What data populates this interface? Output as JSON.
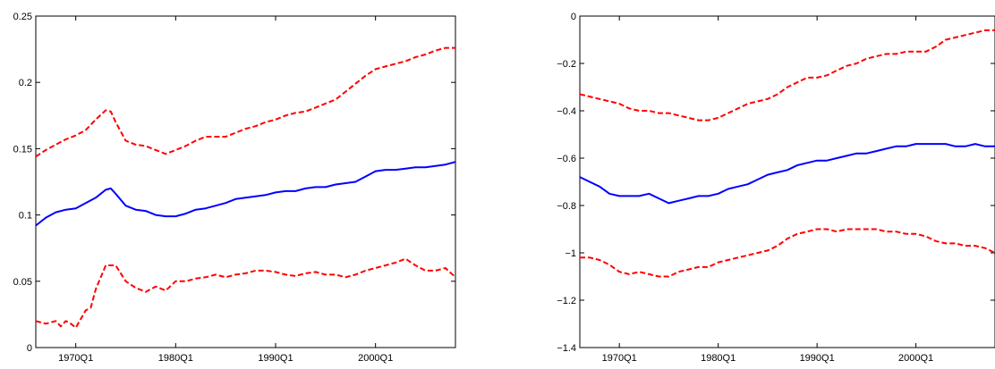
{
  "chart_data": [
    {
      "type": "line",
      "title": "",
      "xlabel": "",
      "ylabel": "",
      "xlim": [
        1966.0,
        2008.0
      ],
      "ylim": [
        0,
        0.25
      ],
      "x_ticks": [
        1970,
        1980,
        1990,
        2000
      ],
      "x_tick_labels": [
        "1970Q1",
        "1980Q1",
        "1990Q1",
        "2000Q1"
      ],
      "y_ticks": [
        0,
        0.05,
        0.1,
        0.15,
        0.2,
        0.25
      ],
      "y_tick_labels": [
        "0",
        "0.05",
        "0.1",
        "0.15",
        "0.2",
        "0.25"
      ],
      "grid": false,
      "series": [
        {
          "role": "estimate",
          "color": "#0000ff",
          "dash": "solid",
          "x": [
            1966.0,
            1967.0,
            1968.0,
            1969.0,
            1970.0,
            1971.0,
            1972.0,
            1973.0,
            1973.5,
            1974.0,
            1975.0,
            1976.0,
            1977.0,
            1978.0,
            1979.0,
            1980.0,
            1981.0,
            1982.0,
            1983.0,
            1984.0,
            1985.0,
            1986.0,
            1987.0,
            1988.0,
            1989.0,
            1990.0,
            1991.0,
            1992.0,
            1993.0,
            1994.0,
            1995.0,
            1996.0,
            1997.0,
            1998.0,
            1999.0,
            2000.0,
            2001.0,
            2002.0,
            2003.0,
            2004.0,
            2005.0,
            2006.0,
            2007.0,
            2008.0
          ],
          "values": [
            0.092,
            0.098,
            0.102,
            0.104,
            0.105,
            0.109,
            0.113,
            0.119,
            0.12,
            0.116,
            0.107,
            0.104,
            0.103,
            0.1,
            0.099,
            0.099,
            0.101,
            0.104,
            0.105,
            0.107,
            0.109,
            0.112,
            0.113,
            0.114,
            0.115,
            0.117,
            0.118,
            0.118,
            0.12,
            0.121,
            0.121,
            0.123,
            0.124,
            0.125,
            0.129,
            0.133,
            0.134,
            0.134,
            0.135,
            0.136,
            0.136,
            0.137,
            0.138,
            0.14
          ]
        },
        {
          "role": "upper-band",
          "color": "#ff0000",
          "dash": "dashed",
          "x": [
            1966.0,
            1967.0,
            1968.0,
            1969.0,
            1970.0,
            1971.0,
            1972.0,
            1973.0,
            1973.5,
            1974.0,
            1975.0,
            1976.0,
            1977.0,
            1978.0,
            1979.0,
            1980.0,
            1981.0,
            1982.0,
            1983.0,
            1984.0,
            1985.0,
            1986.0,
            1987.0,
            1988.0,
            1989.0,
            1990.0,
            1991.0,
            1992.0,
            1993.0,
            1994.0,
            1995.0,
            1996.0,
            1997.0,
            1998.0,
            1999.0,
            2000.0,
            2001.0,
            2002.0,
            2003.0,
            2004.0,
            2005.0,
            2006.0,
            2007.0,
            2008.0
          ],
          "values": [
            0.144,
            0.149,
            0.153,
            0.157,
            0.16,
            0.164,
            0.172,
            0.179,
            0.178,
            0.17,
            0.156,
            0.153,
            0.152,
            0.149,
            0.146,
            0.149,
            0.152,
            0.156,
            0.159,
            0.159,
            0.159,
            0.162,
            0.165,
            0.167,
            0.17,
            0.172,
            0.175,
            0.177,
            0.178,
            0.181,
            0.184,
            0.187,
            0.193,
            0.199,
            0.205,
            0.21,
            0.212,
            0.214,
            0.216,
            0.219,
            0.221,
            0.224,
            0.226,
            0.226
          ]
        },
        {
          "role": "lower-band",
          "color": "#ff0000",
          "dash": "dashed",
          "x": [
            1966.0,
            1967.0,
            1968.0,
            1968.5,
            1969.0,
            1969.5,
            1970.0,
            1971.0,
            1971.5,
            1972.0,
            1973.0,
            1974.0,
            1975.0,
            1976.0,
            1977.0,
            1978.0,
            1979.0,
            1980.0,
            1981.0,
            1982.0,
            1983.0,
            1984.0,
            1985.0,
            1986.0,
            1987.0,
            1988.0,
            1989.0,
            1990.0,
            1991.0,
            1992.0,
            1993.0,
            1994.0,
            1995.0,
            1996.0,
            1997.0,
            1998.0,
            1999.0,
            2000.0,
            2001.0,
            2002.0,
            2003.0,
            2004.0,
            2005.0,
            2006.0,
            2007.0,
            2008.0
          ],
          "values": [
            0.02,
            0.018,
            0.02,
            0.016,
            0.02,
            0.018,
            0.015,
            0.028,
            0.03,
            0.044,
            0.062,
            0.062,
            0.05,
            0.045,
            0.042,
            0.046,
            0.043,
            0.05,
            0.05,
            0.052,
            0.053,
            0.055,
            0.053,
            0.055,
            0.056,
            0.058,
            0.058,
            0.057,
            0.055,
            0.054,
            0.056,
            0.057,
            0.055,
            0.055,
            0.053,
            0.055,
            0.058,
            0.06,
            0.062,
            0.064,
            0.067,
            0.062,
            0.058,
            0.058,
            0.06,
            0.053
          ]
        }
      ]
    },
    {
      "type": "line",
      "title": "",
      "xlabel": "",
      "ylabel": "",
      "xlim": [
        1966.0,
        2008.0
      ],
      "ylim": [
        -1.4,
        0
      ],
      "x_ticks": [
        1970,
        1980,
        1990,
        2000
      ],
      "x_tick_labels": [
        "1970Q1",
        "1980Q1",
        "1990Q1",
        "2000Q1"
      ],
      "y_ticks": [
        -1.4,
        -1.2,
        -1,
        -0.8,
        -0.6,
        -0.4,
        -0.2,
        0
      ],
      "y_tick_labels": [
        "−1.4",
        "−1.2",
        "−1",
        "−0.8",
        "−0.6",
        "−0.4",
        "−0.2",
        "0"
      ],
      "grid": false,
      "series": [
        {
          "role": "estimate",
          "color": "#0000ff",
          "dash": "solid",
          "x": [
            1966.0,
            1967.0,
            1968.0,
            1969.0,
            1970.0,
            1971.0,
            1972.0,
            1973.0,
            1974.0,
            1975.0,
            1976.0,
            1977.0,
            1978.0,
            1979.0,
            1980.0,
            1981.0,
            1982.0,
            1983.0,
            1984.0,
            1985.0,
            1986.0,
            1987.0,
            1988.0,
            1989.0,
            1990.0,
            1991.0,
            1992.0,
            1993.0,
            1994.0,
            1995.0,
            1996.0,
            1997.0,
            1998.0,
            1999.0,
            2000.0,
            2001.0,
            2002.0,
            2003.0,
            2004.0,
            2005.0,
            2006.0,
            2007.0,
            2008.0
          ],
          "values": [
            -0.68,
            -0.7,
            -0.72,
            -0.75,
            -0.76,
            -0.76,
            -0.76,
            -0.75,
            -0.77,
            -0.79,
            -0.78,
            -0.77,
            -0.76,
            -0.76,
            -0.75,
            -0.73,
            -0.72,
            -0.71,
            -0.69,
            -0.67,
            -0.66,
            -0.65,
            -0.63,
            -0.62,
            -0.61,
            -0.61,
            -0.6,
            -0.59,
            -0.58,
            -0.58,
            -0.57,
            -0.56,
            -0.55,
            -0.55,
            -0.54,
            -0.54,
            -0.54,
            -0.54,
            -0.55,
            -0.55,
            -0.54,
            -0.55,
            -0.55
          ]
        },
        {
          "role": "upper-band",
          "color": "#ff0000",
          "dash": "dashed",
          "x": [
            1966.0,
            1967.0,
            1968.0,
            1969.0,
            1970.0,
            1971.0,
            1972.0,
            1973.0,
            1974.0,
            1975.0,
            1976.0,
            1977.0,
            1978.0,
            1979.0,
            1980.0,
            1981.0,
            1982.0,
            1983.0,
            1984.0,
            1985.0,
            1986.0,
            1987.0,
            1988.0,
            1989.0,
            1990.0,
            1991.0,
            1992.0,
            1993.0,
            1994.0,
            1995.0,
            1996.0,
            1997.0,
            1998.0,
            1999.0,
            2000.0,
            2001.0,
            2002.0,
            2003.0,
            2004.0,
            2005.0,
            2006.0,
            2007.0,
            2008.0
          ],
          "values": [
            -0.33,
            -0.34,
            -0.35,
            -0.36,
            -0.37,
            -0.39,
            -0.4,
            -0.4,
            -0.41,
            -0.41,
            -0.42,
            -0.43,
            -0.44,
            -0.44,
            -0.43,
            -0.41,
            -0.39,
            -0.37,
            -0.36,
            -0.35,
            -0.33,
            -0.3,
            -0.28,
            -0.26,
            -0.26,
            -0.25,
            -0.23,
            -0.21,
            -0.2,
            -0.18,
            -0.17,
            -0.16,
            -0.16,
            -0.15,
            -0.15,
            -0.15,
            -0.13,
            -0.1,
            -0.09,
            -0.08,
            -0.07,
            -0.06,
            -0.06
          ]
        },
        {
          "role": "lower-band",
          "color": "#ff0000",
          "dash": "dashed",
          "x": [
            1966.0,
            1967.0,
            1968.0,
            1969.0,
            1970.0,
            1971.0,
            1972.0,
            1973.0,
            1974.0,
            1975.0,
            1976.0,
            1977.0,
            1978.0,
            1979.0,
            1980.0,
            1981.0,
            1982.0,
            1983.0,
            1984.0,
            1985.0,
            1986.0,
            1987.0,
            1988.0,
            1989.0,
            1990.0,
            1991.0,
            1992.0,
            1993.0,
            1994.0,
            1995.0,
            1996.0,
            1997.0,
            1998.0,
            1999.0,
            2000.0,
            2001.0,
            2002.0,
            2003.0,
            2004.0,
            2005.0,
            2006.0,
            2007.0,
            2008.0
          ],
          "values": [
            -1.02,
            -1.02,
            -1.03,
            -1.05,
            -1.08,
            -1.09,
            -1.08,
            -1.09,
            -1.1,
            -1.1,
            -1.08,
            -1.07,
            -1.06,
            -1.06,
            -1.04,
            -1.03,
            -1.02,
            -1.01,
            -1.0,
            -0.99,
            -0.97,
            -0.94,
            -0.92,
            -0.91,
            -0.9,
            -0.9,
            -0.91,
            -0.9,
            -0.9,
            -0.9,
            -0.9,
            -0.91,
            -0.91,
            -0.92,
            -0.92,
            -0.93,
            -0.95,
            -0.96,
            -0.96,
            -0.97,
            -0.97,
            -0.98,
            -1.0
          ]
        }
      ]
    }
  ]
}
